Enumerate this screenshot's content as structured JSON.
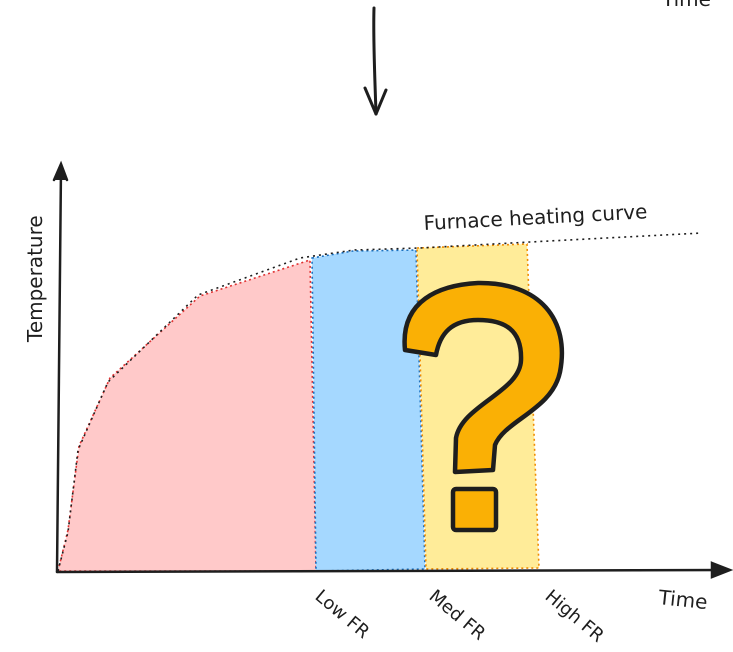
{
  "top_right_label": "Time",
  "y_axis_label": "Temperature",
  "x_axis_label": "Time",
  "curve_label": "Furnace heating curve",
  "categories": [
    "Low FR",
    "Med FR",
    "High FR"
  ],
  "question_mark": "?",
  "colors": {
    "low_fill": "#ffc9c9",
    "low_stroke": "#e03131",
    "med_fill": "#a5d8ff",
    "med_stroke": "#1971c2",
    "high_fill": "#ffec99",
    "high_stroke": "#f08c00",
    "question_fill": "#fab005",
    "ink": "#1e1e1e"
  }
}
